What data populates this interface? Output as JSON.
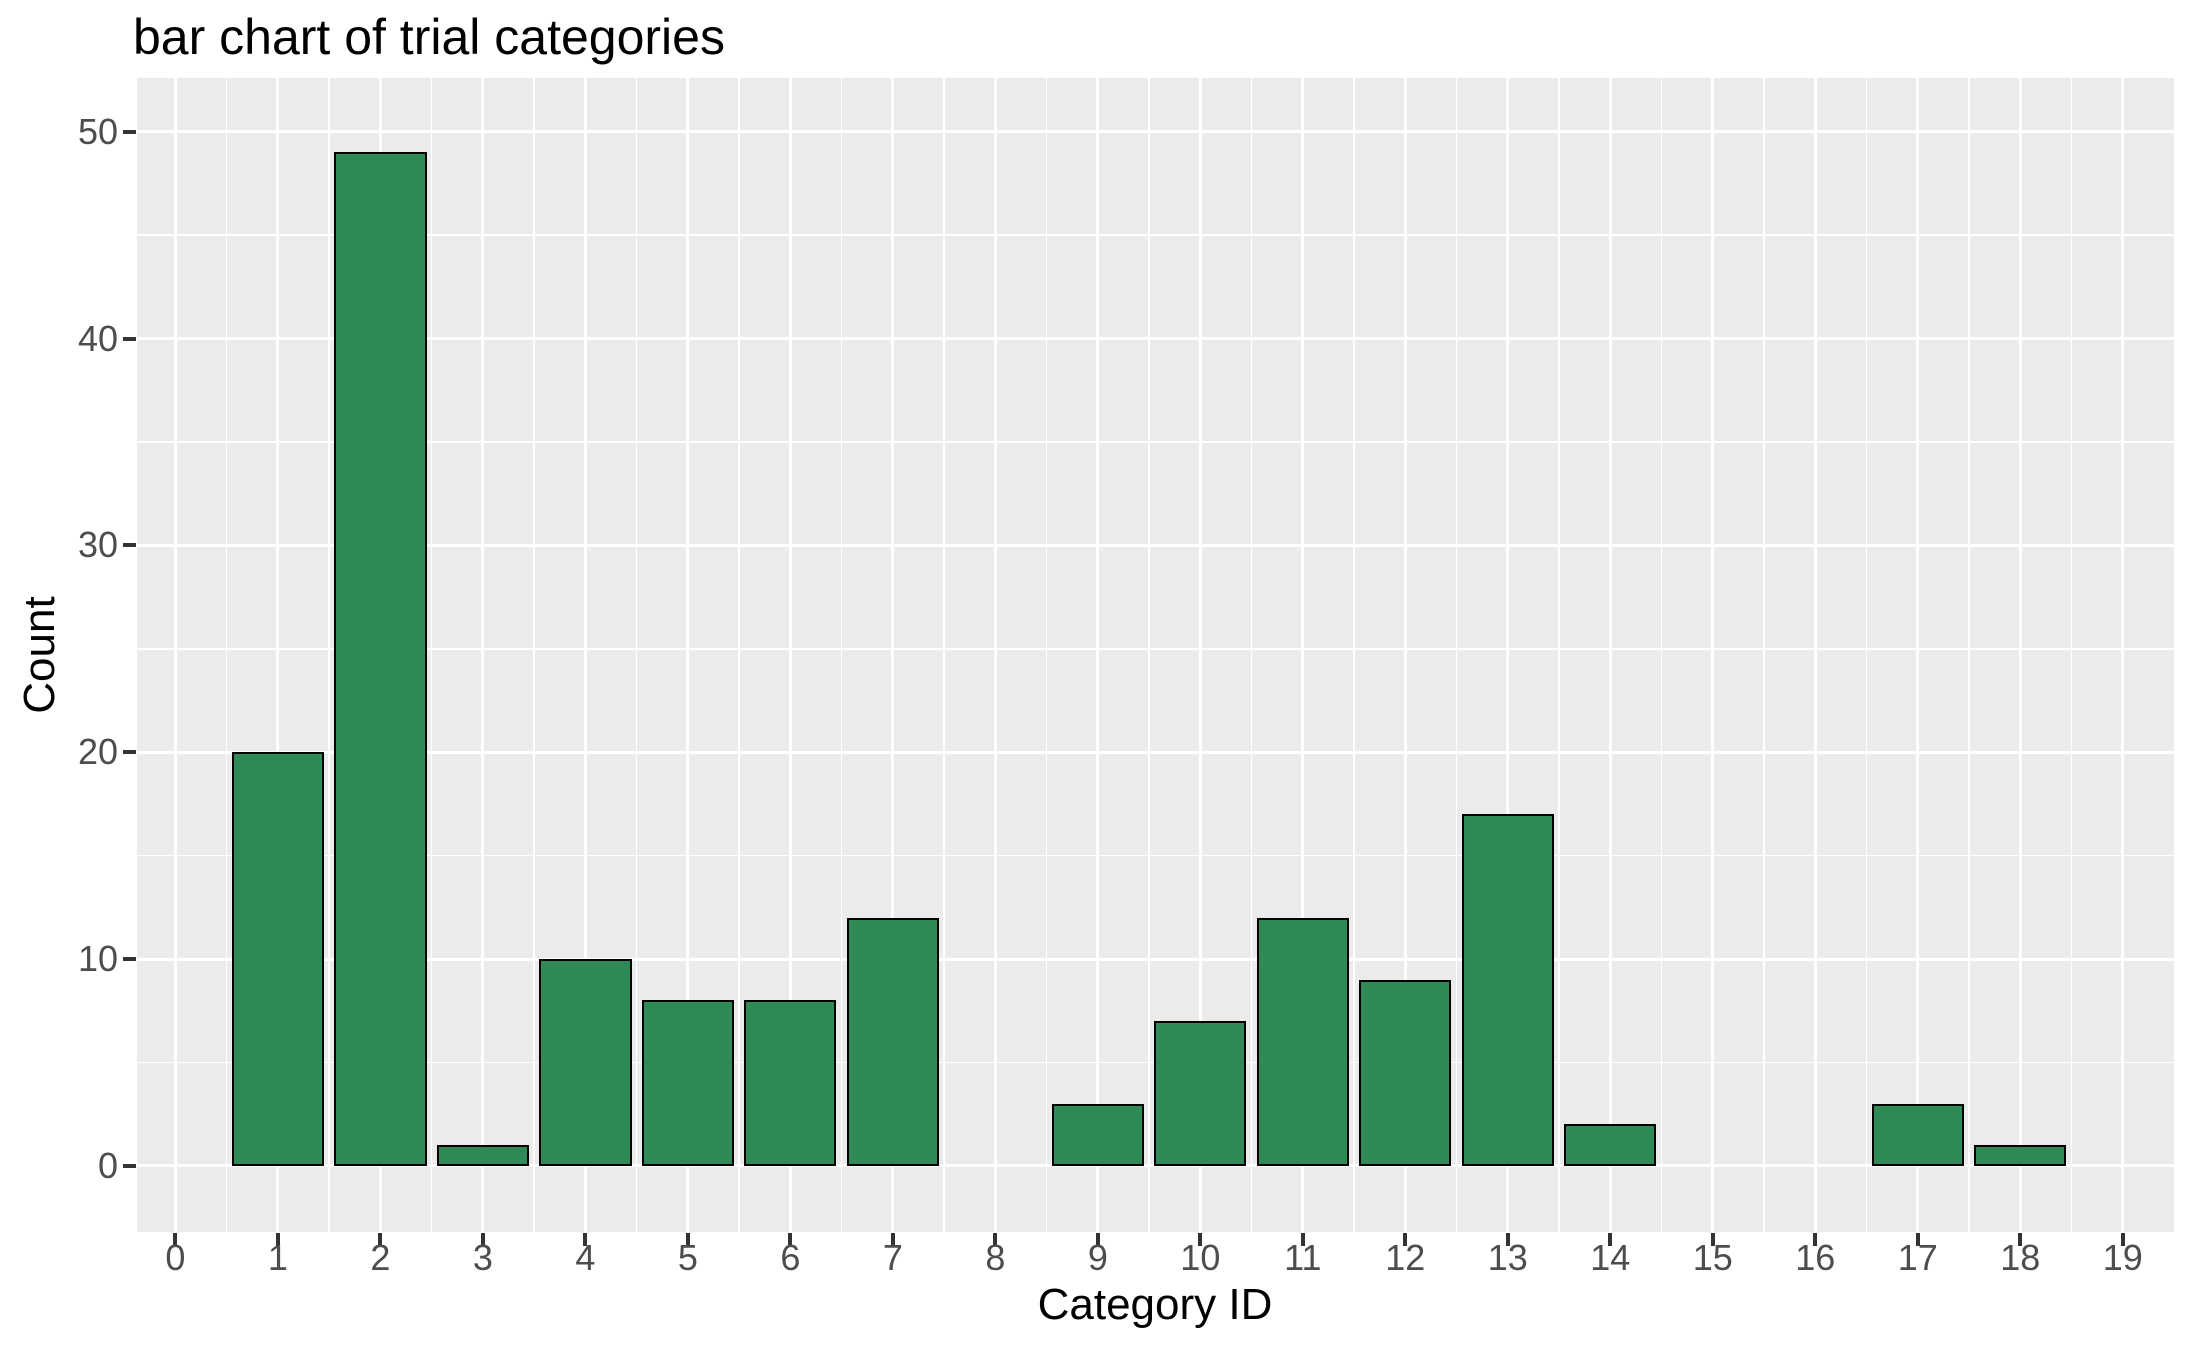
{
  "chart": {
    "title": "bar chart of trial categories",
    "xlabel": "Category ID",
    "ylabel": "Count"
  },
  "chart_data": {
    "type": "bar",
    "title": "bar chart of trial categories",
    "xlabel": "Category ID",
    "ylabel": "Count",
    "categories": [
      0,
      1,
      2,
      3,
      4,
      5,
      6,
      7,
      8,
      9,
      10,
      11,
      12,
      13,
      14,
      15,
      16,
      17,
      18,
      19
    ],
    "values": [
      0,
      20,
      49,
      1,
      10,
      8,
      8,
      12,
      0,
      3,
      7,
      12,
      9,
      17,
      2,
      0,
      0,
      3,
      1,
      0
    ],
    "x_tick_labels": [
      "0",
      "1",
      "2",
      "3",
      "4",
      "5",
      "6",
      "7",
      "8",
      "9",
      "10",
      "11",
      "12",
      "13",
      "14",
      "15",
      "16",
      "17",
      "18",
      "19"
    ],
    "y_tick_labels": [
      "0",
      "10",
      "20",
      "30",
      "40",
      "50"
    ],
    "y_major_ticks": [
      0,
      10,
      20,
      30,
      40,
      50
    ],
    "y_minor_ticks": [
      5,
      15,
      25,
      35,
      45
    ],
    "x_range": [
      -0.375,
      19.5
    ],
    "y_range": [
      -3.2,
      52.6
    ],
    "ylim": [
      0,
      50
    ],
    "bar_width": 0.9,
    "grid": "on",
    "legend": "none",
    "style": "ggplot",
    "colors": {
      "bar_fill": "#2E8B57",
      "bar_border": "#000000",
      "panel_background": "#EBEBEB",
      "gridline": "#FFFFFF",
      "tick_label": "#4D4D4D",
      "axis_title": "#000000",
      "title": "#000000",
      "tick_mark": "#333333"
    }
  }
}
